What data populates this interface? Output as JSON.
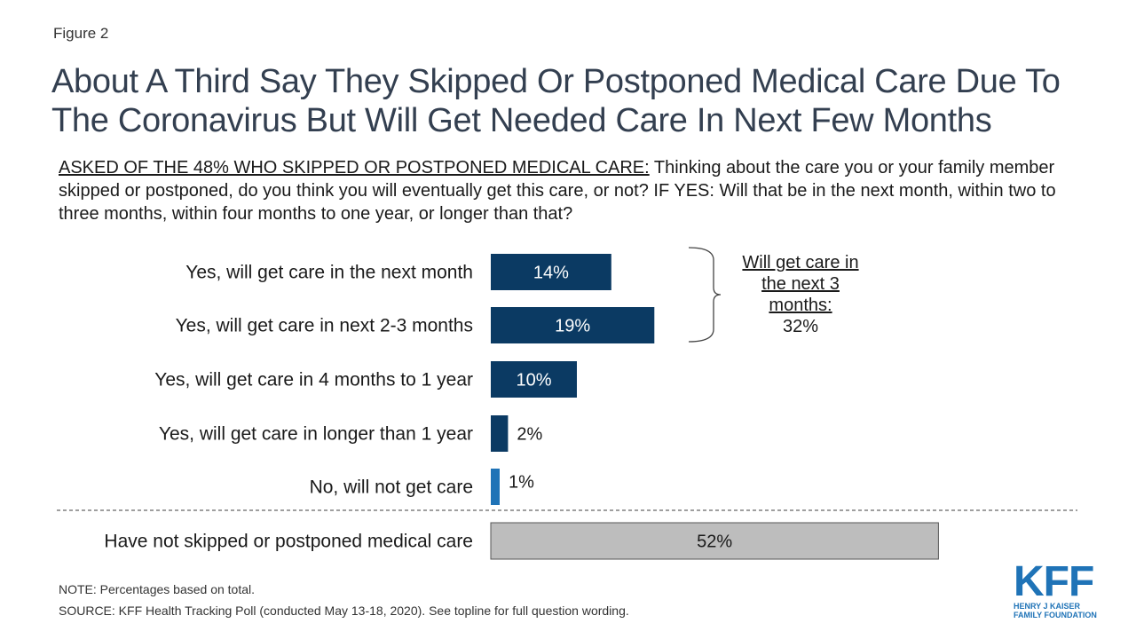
{
  "figure_label": "Figure 2",
  "title": "About A Third Say They Skipped Or Postponed Medical Care Due To The Coronavirus But Will Get Needed Care In Next Few Months",
  "question": {
    "lead": "ASKED OF THE 48% WHO SKIPPED OR POSTPONED MEDICAL CARE:",
    "text": " Thinking about the care you or your family member skipped or postponed, do you think you will eventually get this care, or not? IF YES: Will that be in the next month, within two to three months, within four months to one year, or longer than that?"
  },
  "bracket": {
    "label": "Will get care in the next 3 months:",
    "value": "32%"
  },
  "notes": {
    "note": "NOTE: Percentages based on total.",
    "source": "SOURCE: KFF Health Tracking Poll (conducted May 13-18, 2020). See topline for full question wording."
  },
  "logo": {
    "mark": "KFF",
    "line1": "HENRY J KAISER",
    "line2": "FAMILY FOUNDATION"
  },
  "colors": {
    "dark_navy": "#0b3a63",
    "bright_blue": "#1f73b7",
    "gray": "#bdbdbd",
    "title": "#333f50"
  },
  "chart_data": {
    "type": "bar",
    "orientation": "horizontal",
    "categories": [
      "Yes, will get care in the next month",
      "Yes, will get care in next 2-3 months",
      "Yes, will get care in 4 months to 1 year",
      "Yes, will get care in longer than 1 year",
      "No, will not get care",
      "Have not skipped or postponed medical care"
    ],
    "values": [
      14,
      19,
      10,
      2,
      1,
      52
    ],
    "labels": [
      "14%",
      "19%",
      "10%",
      "2%",
      "1%",
      "52%"
    ],
    "bar_colors": [
      "#0b3a63",
      "#0b3a63",
      "#0b3a63",
      "#0b3a63",
      "#1f73b7",
      "#bdbdbd"
    ],
    "xlim": [
      0,
      100
    ],
    "unit": "%"
  }
}
